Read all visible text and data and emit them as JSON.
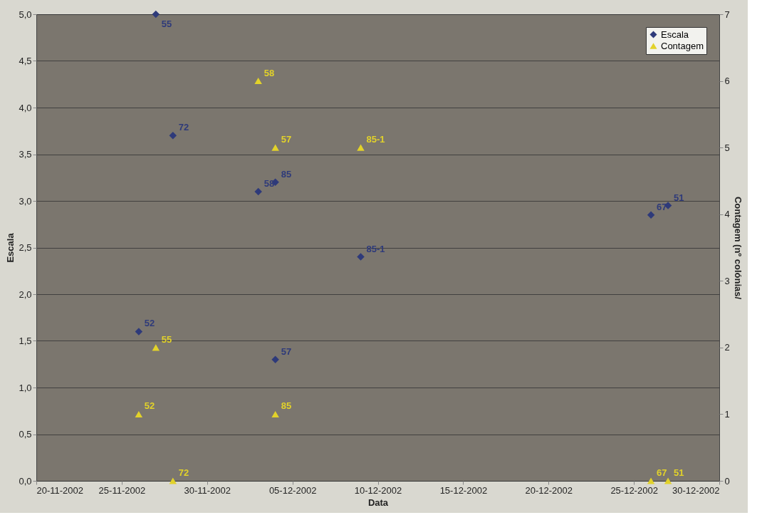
{
  "chart_data": {
    "type": "scatter",
    "xlabel": "Data",
    "ylabel": "Escala",
    "y2label": "Contagem (nº colónias/",
    "series": [
      {
        "name": "Escala",
        "color": "#2e3a7a",
        "marker": "diamond",
        "x": [
          "2002-11-27",
          "2002-11-28",
          "2002-12-03",
          "2002-12-04",
          "2002-12-09",
          "2002-11-26",
          "2002-12-04",
          "2002-12-26",
          "2002-12-27"
        ],
        "values": [
          5.0,
          3.7,
          3.1,
          3.2,
          2.4,
          1.6,
          1.3,
          2.85,
          2.95
        ]
      },
      {
        "name": "Contagem",
        "color": "#e2d22a",
        "marker": "triangle",
        "axis": "y2",
        "x": [
          "2002-12-03",
          "2002-12-04",
          "2002-12-09",
          "2002-11-27",
          "2002-11-26",
          "2002-12-04",
          "2002-11-28",
          "2002-12-26",
          "2002-12-27"
        ],
        "values": [
          6,
          5,
          5,
          2,
          1,
          1,
          0,
          0,
          0
        ]
      }
    ],
    "annotations": [
      {
        "text": "55",
        "x": "2002-11-27",
        "y": 5.0
      },
      {
        "text": "72",
        "x": "2002-11-28",
        "y": 3.7
      },
      {
        "text": "58",
        "x": "2002-12-03",
        "y": 3.1
      },
      {
        "text": "85",
        "x": "2002-12-04",
        "y": 3.2
      },
      {
        "text": "85-1",
        "x": "2002-12-09",
        "y": 2.4
      },
      {
        "text": "52",
        "x": "2002-11-26",
        "y": 1.6
      },
      {
        "text": "57",
        "x": "2002-12-04",
        "y": 1.3
      },
      {
        "text": "67",
        "x": "2002-12-26",
        "y": 2.85
      },
      {
        "text": "51",
        "x": "2002-12-27",
        "y": 2.95
      },
      "58",
      "57",
      "85-1",
      "55",
      "52",
      "85",
      "72",
      "67",
      "51"
    ],
    "xlim": [
      "2002-11-20",
      "2002-12-30"
    ],
    "xticks": [
      {
        "value": "2002-11-20",
        "label": "20-11-2002"
      },
      {
        "value": "2002-11-25",
        "label": "25-11-2002"
      },
      {
        "value": "2002-11-30",
        "label": "30-11-2002"
      },
      {
        "value": "2002-12-05",
        "label": "05-12-2002"
      },
      {
        "value": "2002-12-10",
        "label": "10-12-2002"
      },
      {
        "value": "2002-12-15",
        "label": "15-12-2002"
      },
      {
        "value": "2002-12-20",
        "label": "20-12-2002"
      },
      {
        "value": "2002-12-25",
        "label": "25-12-2002"
      },
      {
        "value": "2002-12-30",
        "label": "30-12-2002"
      }
    ],
    "ylim": [
      0,
      5
    ],
    "yticks": [
      {
        "value": 0,
        "label": "0,0"
      },
      {
        "value": 0.5,
        "label": "0,5"
      },
      {
        "value": 1,
        "label": "1,0"
      },
      {
        "value": 1.5,
        "label": "1,5"
      },
      {
        "value": 2,
        "label": "2,0"
      },
      {
        "value": 2.5,
        "label": "2,5"
      },
      {
        "value": 3,
        "label": "3,0"
      },
      {
        "value": 3.5,
        "label": "3,5"
      },
      {
        "value": 4,
        "label": "4,0"
      },
      {
        "value": 4.5,
        "label": "4,5"
      },
      {
        "value": 5,
        "label": "5,0"
      }
    ],
    "y2lim": [
      0,
      7
    ],
    "y2ticks": [
      0,
      1,
      2,
      3,
      4,
      5,
      6,
      7
    ],
    "grid": "y",
    "legend": "top right"
  }
}
